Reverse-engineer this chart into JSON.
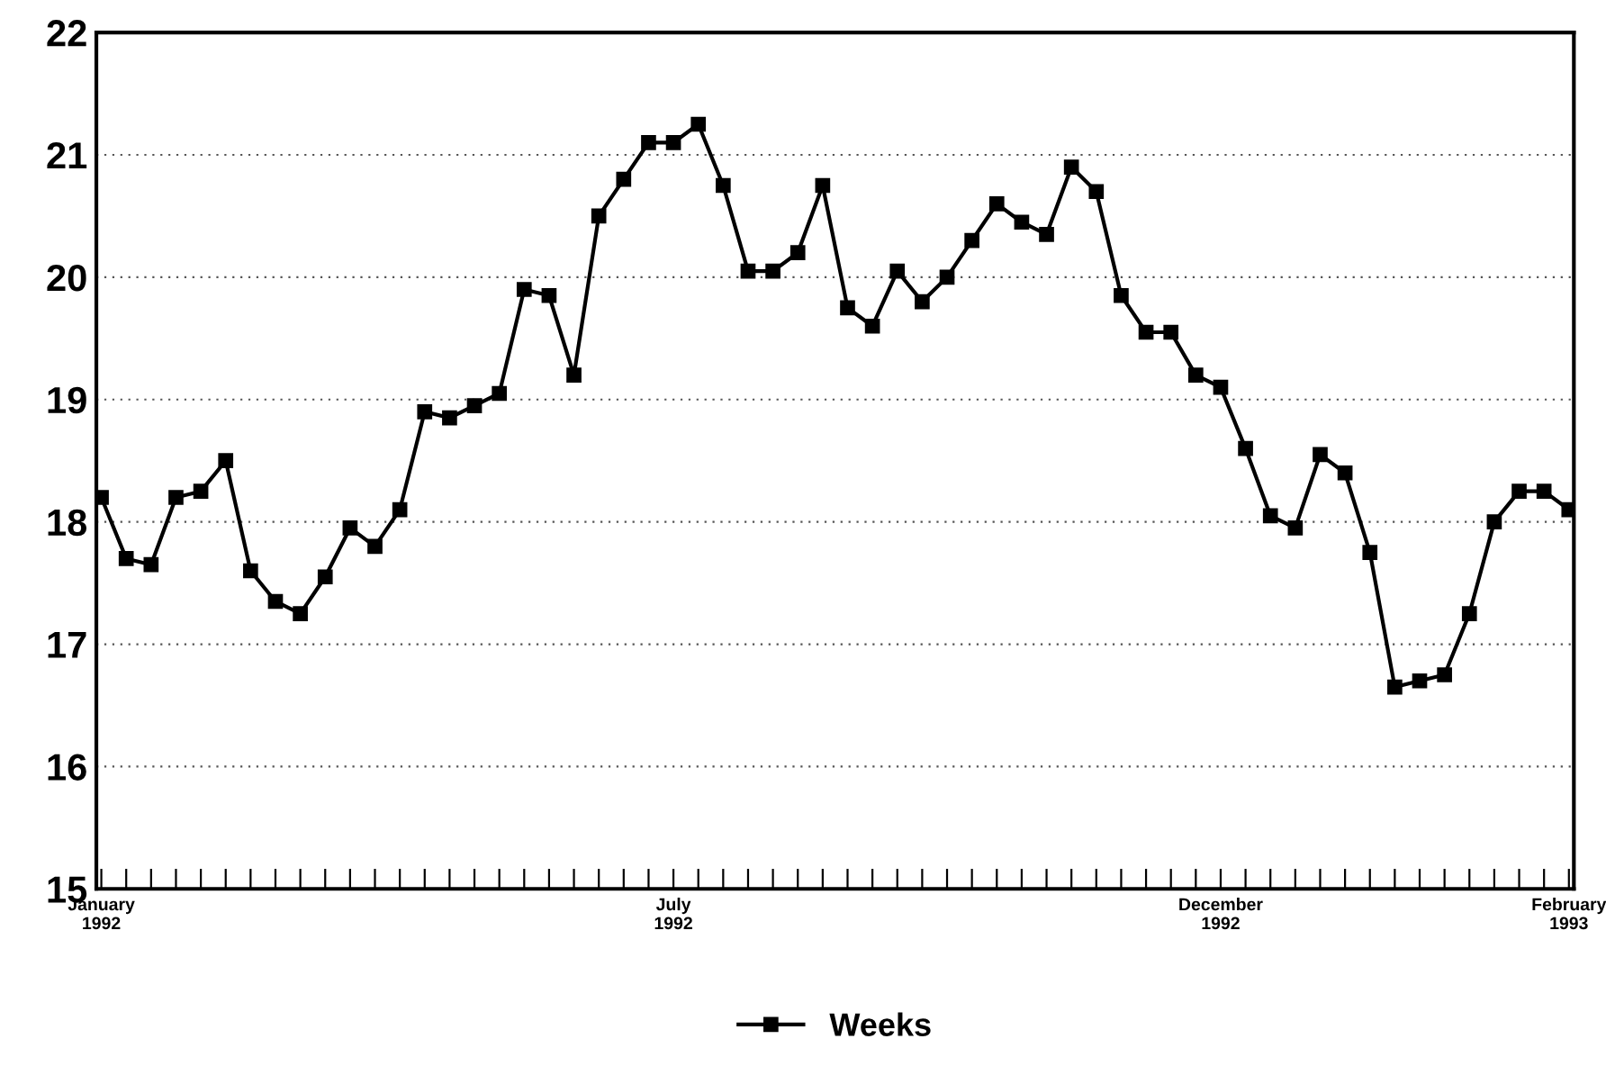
{
  "chart_data": {
    "type": "line",
    "categories": [
      "January\n1992",
      null,
      null,
      null,
      null,
      null,
      null,
      null,
      null,
      null,
      null,
      null,
      null,
      null,
      null,
      null,
      null,
      null,
      null,
      null,
      null,
      null,
      null,
      "July\n1992",
      null,
      null,
      null,
      null,
      null,
      null,
      null,
      null,
      null,
      null,
      null,
      null,
      null,
      null,
      null,
      null,
      null,
      null,
      null,
      null,
      null,
      "December\n1992",
      null,
      null,
      null,
      null,
      null,
      null,
      null,
      null,
      null,
      null,
      null,
      null,
      null,
      "February\n1993"
    ],
    "series": [
      {
        "name": "Weeks",
        "color": "#000000",
        "values": [
          18.2,
          17.7,
          17.65,
          18.2,
          18.25,
          18.5,
          17.6,
          17.35,
          17.25,
          17.55,
          17.95,
          17.8,
          18.1,
          18.9,
          18.85,
          18.95,
          19.05,
          19.9,
          19.85,
          19.2,
          20.5,
          20.8,
          21.1,
          21.1,
          21.25,
          20.75,
          20.05,
          20.05,
          20.2,
          20.75,
          19.75,
          19.6,
          20.05,
          19.8,
          20.0,
          20.3,
          20.6,
          20.45,
          20.35,
          20.9,
          20.7,
          19.85,
          19.55,
          19.55,
          19.2,
          19.1,
          18.6,
          18.05,
          17.95,
          18.55,
          18.4,
          17.75,
          16.65,
          16.7,
          16.75,
          17.25,
          18.0,
          18.25,
          18.25,
          18.1
        ]
      }
    ],
    "ylim": [
      15,
      22
    ],
    "yticks": [
      15,
      16,
      17,
      18,
      19,
      20,
      21,
      22
    ],
    "grid": "y",
    "legend": "bottom",
    "marker": "square",
    "line_style": "solid"
  }
}
